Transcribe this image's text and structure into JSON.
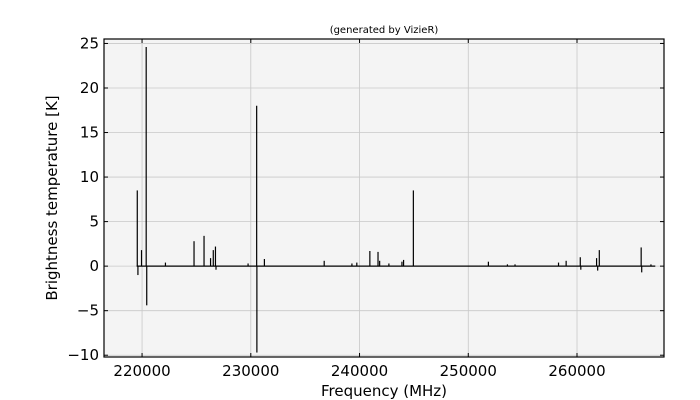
{
  "chart_data": {
    "type": "line",
    "title": "(generated by VizieR)",
    "xlabel": "Frequency (MHz)",
    "ylabel": "Brightness temperature [K]",
    "xlim": [
      216500,
      268000
    ],
    "ylim": [
      -10.2,
      25.5
    ],
    "grid": true,
    "legend": "none",
    "x_ticks": [
      220000,
      230000,
      240000,
      250000,
      260000
    ],
    "x_tick_labels": [
      "220000",
      "230000",
      "240000",
      "250000",
      "260000"
    ],
    "y_ticks": [
      -10,
      -5,
      0,
      5,
      10,
      15,
      20,
      25
    ],
    "y_tick_labels": [
      "−10",
      "−5",
      "0",
      "5",
      "10",
      "15",
      "20",
      "25"
    ],
    "baseline": 0,
    "x_range": [
      219500,
      267200
    ],
    "series": [
      {
        "peaks": [
          {
            "x": 219560,
            "y": 8.5
          },
          {
            "x": 219620,
            "y": -1.0
          },
          {
            "x": 219950,
            "y": 1.8
          },
          {
            "x": 220380,
            "y": 24.6
          },
          {
            "x": 220430,
            "y": -4.4
          },
          {
            "x": 222150,
            "y": 0.4
          },
          {
            "x": 224780,
            "y": 2.8
          },
          {
            "x": 225700,
            "y": 3.4
          },
          {
            "x": 226300,
            "y": 0.9
          },
          {
            "x": 226550,
            "y": 1.8
          },
          {
            "x": 226750,
            "y": 2.2
          },
          {
            "x": 226800,
            "y": -0.4
          },
          {
            "x": 229750,
            "y": 0.3
          },
          {
            "x": 230540,
            "y": 18.0
          },
          {
            "x": 230560,
            "y": -9.7
          },
          {
            "x": 231250,
            "y": 0.8
          },
          {
            "x": 236750,
            "y": 0.6
          },
          {
            "x": 239300,
            "y": 0.3
          },
          {
            "x": 239750,
            "y": 0.4
          },
          {
            "x": 240950,
            "y": 1.7
          },
          {
            "x": 241700,
            "y": 1.6
          },
          {
            "x": 241850,
            "y": 0.6
          },
          {
            "x": 242700,
            "y": 0.3
          },
          {
            "x": 243900,
            "y": 0.5
          },
          {
            "x": 244050,
            "y": 0.7
          },
          {
            "x": 244950,
            "y": 8.5
          },
          {
            "x": 251850,
            "y": 0.5
          },
          {
            "x": 253600,
            "y": 0.2
          },
          {
            "x": 254300,
            "y": 0.2
          },
          {
            "x": 258300,
            "y": 0.4
          },
          {
            "x": 259000,
            "y": 0.6
          },
          {
            "x": 260300,
            "y": 1.0
          },
          {
            "x": 260350,
            "y": -0.4
          },
          {
            "x": 261800,
            "y": 0.9
          },
          {
            "x": 261900,
            "y": -0.5
          },
          {
            "x": 262050,
            "y": 1.8
          },
          {
            "x": 265900,
            "y": 2.1
          },
          {
            "x": 265950,
            "y": -0.7
          },
          {
            "x": 266800,
            "y": 0.2
          }
        ]
      }
    ]
  },
  "colors": {
    "line": "#000000",
    "plot_background": "#f4f4f4",
    "grid": "#c8c8c8",
    "axes": "#000000"
  }
}
